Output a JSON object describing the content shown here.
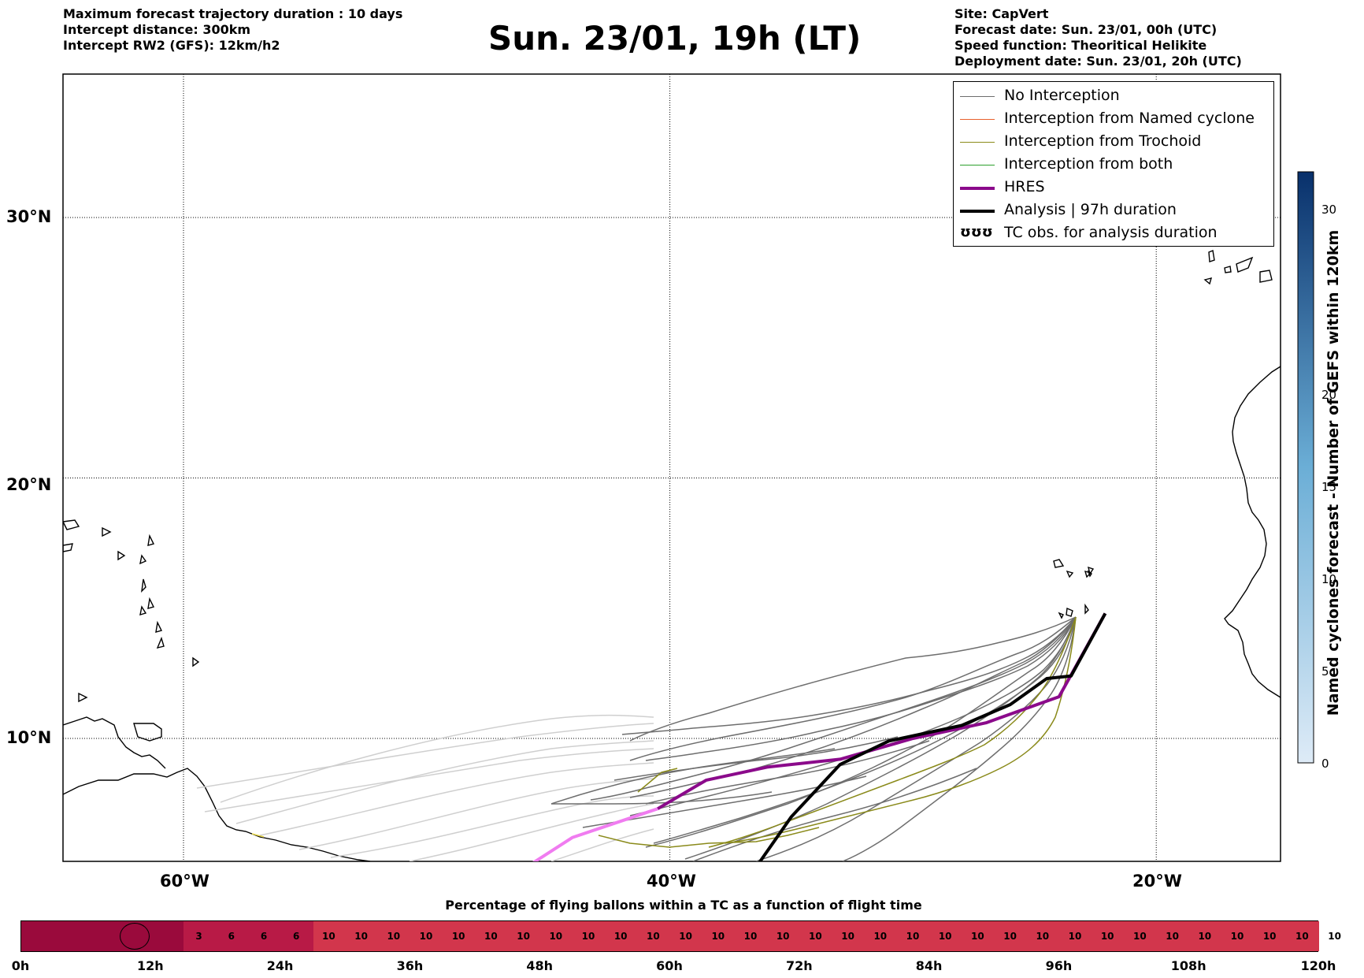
{
  "header": {
    "left_lines": [
      "Maximum forecast trajectory duration : 10 days",
      "Intercept distance: 300km",
      "Intercept RW2 (GFS):  12km/h2"
    ],
    "title": "Sun. 23/01, 19h (LT)",
    "right_lines": [
      "Site: CapVert",
      "Forecast date: Sun. 23/01, 00h (UTC)",
      "Speed function: Theoritical Helikite",
      "Deployment date: Sun. 23/01, 20h (UTC)"
    ]
  },
  "colors": {
    "no_interception": "#6e6e6e",
    "no_interception_light": "#cfcfcf",
    "named_cyclone": "#e8602c",
    "trochoid": "#8a8a1a",
    "both": "#2ca02c",
    "hres": "#8b0a8b",
    "hres_light": "#f07cf0",
    "analysis": "#000000",
    "timeline_dark": "#9a0a3c",
    "timeline_mid": "#b81a46",
    "timeline_main": "#d2364c"
  },
  "legend": {
    "items": [
      {
        "label": "No Interception",
        "style": "gray"
      },
      {
        "label": "Interception from Named cyclone",
        "style": "orange"
      },
      {
        "label": "Interception from Trochoid",
        "style": "olive"
      },
      {
        "label": "Interception from both",
        "style": "green"
      },
      {
        "label": "HRES",
        "style": "purple"
      },
      {
        "label": "Analysis | 97h duration",
        "style": "black"
      },
      {
        "label": "TC obs. for analysis duration",
        "style": "symbol"
      }
    ],
    "symbol_glyph": "ʊʊʊ"
  },
  "map": {
    "lon_range": [
      -65,
      15
    ],
    "lat_range": [
      5,
      35
    ],
    "x_ticks": [
      "60°W",
      "40°W",
      "20°W"
    ],
    "y_ticks": [
      "30°N",
      "20°N",
      "10°N"
    ],
    "grid": true
  },
  "colorbar": {
    "title": "Named cyclones forecast - Number of GEFS within 120km",
    "ticks": [
      "0",
      "5",
      "10",
      "15",
      "20",
      "30"
    ],
    "range": [
      0,
      32
    ]
  },
  "timeline": {
    "title": "Percentage of flying ballons within a TC as a function of flight time",
    "hour_labels": [
      "0h",
      "12h",
      "24h",
      "36h",
      "48h",
      "60h",
      "72h",
      "84h",
      "96h",
      "108h",
      "120h"
    ],
    "values": [
      "3",
      "6",
      "6",
      "6",
      "10",
      "10",
      "10",
      "10",
      "10",
      "10",
      "10",
      "10",
      "10",
      "10",
      "10",
      "10",
      "10",
      "10",
      "10",
      "10",
      "10",
      "10",
      "10",
      "10",
      "10",
      "10",
      "10",
      "10",
      "10",
      "10",
      "10",
      "10",
      "10",
      "10",
      "10",
      "10"
    ]
  },
  "chart_data": {
    "type": "line",
    "title": "Sun. 23/01, 19h (LT)",
    "xlabel": "",
    "ylabel": "",
    "xlim": [
      -65,
      15
    ],
    "ylim": [
      5,
      35
    ],
    "series": [
      {
        "name": "HRES",
        "points": [
          [
            -22.1,
            14.8
          ],
          [
            -24,
            11.6
          ],
          [
            -27,
            10.6
          ],
          [
            -30,
            10.0
          ],
          [
            -33,
            9.2
          ],
          [
            -36,
            8.9
          ],
          [
            -38.5,
            8.4
          ],
          [
            -40.5,
            7.3
          ],
          [
            -44,
            6.2
          ],
          [
            -46,
            5.0
          ]
        ]
      },
      {
        "name": "Analysis | 97h duration",
        "points": [
          [
            -22.1,
            14.8
          ],
          [
            -23.5,
            12.4
          ],
          [
            -24.5,
            12.3
          ],
          [
            -26,
            11.3
          ],
          [
            -28,
            10.5
          ],
          [
            -31,
            9.9
          ],
          [
            -33,
            9.0
          ],
          [
            -35,
            7.0
          ],
          [
            -36.5,
            5.0
          ]
        ]
      }
    ]
  }
}
